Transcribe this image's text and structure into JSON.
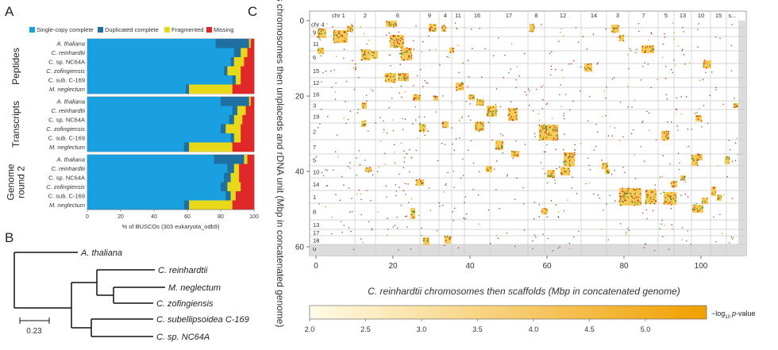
{
  "panel_labels": [
    "A",
    "B",
    "C"
  ],
  "panelA": {
    "legend": [
      {
        "label": "Single-copy complete",
        "color": "#1aa0e0"
      },
      {
        "label": "Duplicated complete",
        "color": "#1f6fa0"
      },
      {
        "label": "Fragmented",
        "color": "#e8d81a"
      },
      {
        "label": "Missing",
        "color": "#e0282a"
      }
    ],
    "xlabel": "% of BUSCOs (303 eukaryota_odb9)",
    "xticks": [
      "0",
      "20",
      "40",
      "60",
      "80",
      "100"
    ]
  },
  "chart_data": {
    "type": "bar",
    "orientation": "horizontal-stacked",
    "xlim": [
      0,
      100
    ],
    "xlabel": "% of BUSCOs (303 eukaryota_odb9)",
    "series_names": [
      "Single-copy complete",
      "Duplicated complete",
      "Fragmented",
      "Missing"
    ],
    "groups": [
      {
        "name": "Peptides",
        "rows": [
          {
            "species": "A. thaliana",
            "italic": true,
            "values": [
              77,
              20,
              1,
              2
            ]
          },
          {
            "species": "C. reinhardtii",
            "italic": true,
            "values": [
              88,
              4,
              4,
              4
            ]
          },
          {
            "species": "C. sp. NC64A",
            "italic": false,
            "values": [
              86,
              2,
              6,
              6
            ]
          },
          {
            "species": "C. zofingiensis",
            "italic": true,
            "values": [
              82,
              2,
              8,
              8
            ]
          },
          {
            "species": "C. sub. C-169",
            "italic": false,
            "values": [
              87,
              2,
              3,
              8
            ]
          },
          {
            "species": "M. neglectum",
            "italic": true,
            "values": [
              59,
              2,
              26,
              13
            ]
          }
        ]
      },
      {
        "name": "Transcripts",
        "rows": [
          {
            "species": "A. thaliana",
            "italic": true,
            "values": [
              80,
              17,
              1,
              2
            ]
          },
          {
            "species": "C. reinhardtii",
            "italic": true,
            "values": [
              87,
              3,
              5,
              5
            ]
          },
          {
            "species": "C. sp. NC64A",
            "italic": false,
            "values": [
              85,
              3,
              5,
              7
            ]
          },
          {
            "species": "C. zofingiensis",
            "italic": true,
            "values": [
              80,
              3,
              9,
              8
            ]
          },
          {
            "species": "C. sub. C-169",
            "italic": false,
            "values": [
              86,
              2,
              4,
              8
            ]
          },
          {
            "species": "M. neglectum",
            "italic": true,
            "values": [
              58,
              3,
              26,
              13
            ]
          }
        ]
      },
      {
        "name": "Genome round 2",
        "rows": [
          {
            "species": "A. thaliana",
            "italic": true,
            "values": [
              76,
              18,
              2,
              4
            ]
          },
          {
            "species": "C. reinhardtii",
            "italic": true,
            "values": [
              84,
              4,
              3,
              9
            ]
          },
          {
            "species": "C. sp. NC64A",
            "italic": false,
            "values": [
              82,
              4,
              5,
              9
            ]
          },
          {
            "species": "C. zofingiensis",
            "italic": true,
            "values": [
              80,
              4,
              8,
              8
            ]
          },
          {
            "species": "C. sub. C-169",
            "italic": false,
            "values": [
              83,
              3,
              3,
              11
            ]
          },
          {
            "species": "M. neglectum",
            "italic": true,
            "values": [
              58,
              3,
              26,
              13
            ]
          }
        ]
      }
    ]
  },
  "panelB": {
    "leaves": [
      "A. thaliana",
      "C. reinhardtii",
      "M. neglectum",
      "C. zofingiensis",
      "C. subellipsoidea C-169",
      "C. sp. NC64A"
    ],
    "scale_label": "0.23"
  },
  "panelC": {
    "xlabel": "C. reinhardtii chromosomes then scaffolds (Mbp in concatenated genome)",
    "ylabel": "C. zofingiensis chromosomes then unplaceds and rDNA unit (Mbp in concatenated genome)",
    "xticks": [
      0,
      20,
      40,
      60,
      80,
      100
    ],
    "yticks": [
      0,
      20,
      40,
      60
    ],
    "x_chromosomes": [
      "chr 1",
      "2",
      "6",
      "9",
      "4",
      "11",
      "16",
      "17",
      "8",
      "12",
      "14",
      "3",
      "7",
      "5",
      "13",
      "10",
      "15",
      "s..."
    ],
    "y_chromosomes": [
      "chr 4",
      "9",
      "11",
      "6",
      "15",
      "12",
      "16",
      "3",
      "19",
      "2",
      "7",
      "5",
      "10",
      "14",
      "1",
      "8",
      "13",
      "17",
      "18",
      "u"
    ],
    "colorbar": {
      "ticks": [
        "2.0",
        "2.5",
        "3.0",
        "3.5",
        "4.0",
        "4.5",
        "5.0"
      ],
      "label_prefix": "−log",
      "label_sub": "10",
      "label_italic": "p",
      "label_suffix": "-value",
      "color_low": "#fffbe6",
      "color_high": "#f0a000"
    }
  }
}
